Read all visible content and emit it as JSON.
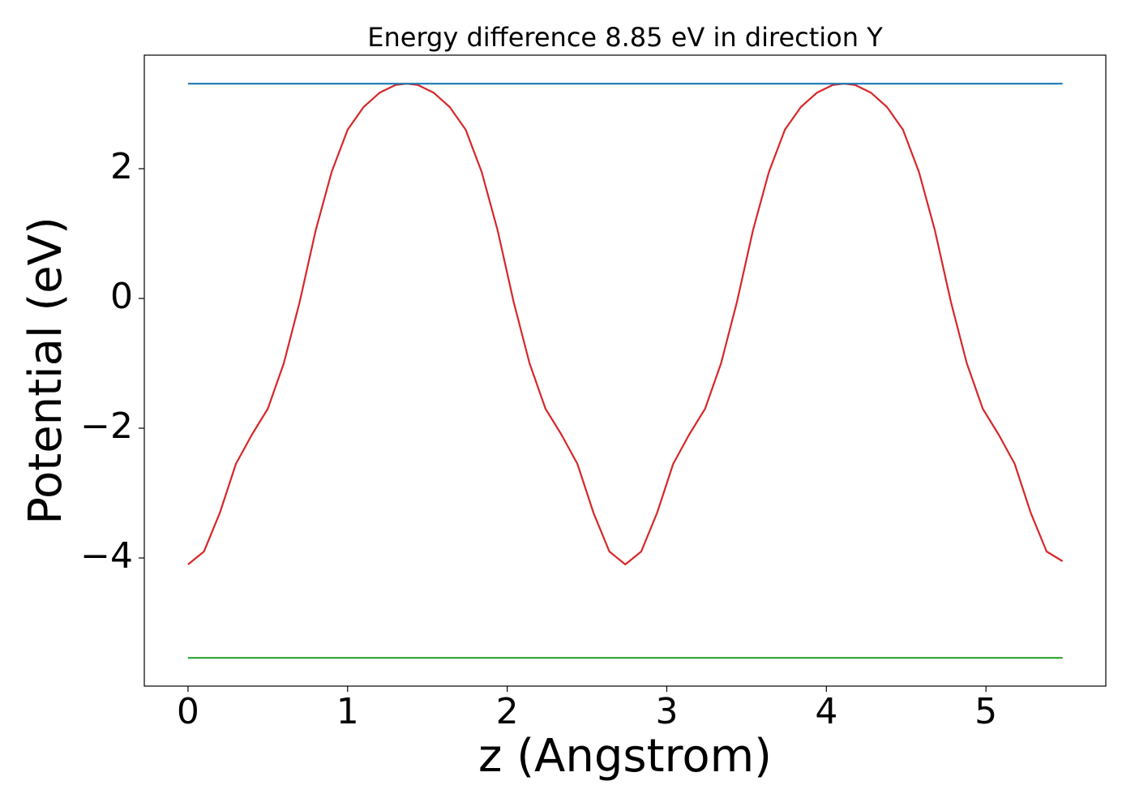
{
  "chart_data": {
    "type": "line",
    "title": "Energy difference 8.85 eV in direction Y",
    "xlabel": "z (Angstrom)",
    "ylabel": "Potential (eV)",
    "xlim": [
      -0.274,
      5.751
    ],
    "ylim": [
      -5.975,
      3.75
    ],
    "xticks": [
      0,
      1,
      2,
      3,
      4,
      5
    ],
    "yticks": [
      {
        "value": -4,
        "label": "−4"
      },
      {
        "value": -2,
        "label": "−2"
      },
      0,
      2
    ],
    "grid": false,
    "series": [
      {
        "color": "#d62728",
        "x": [
          0,
          0.1,
          0.2,
          0.3,
          0.4,
          0.5,
          0.6,
          0.7,
          0.8,
          0.9,
          1.0,
          1.1,
          1.2,
          1.3,
          1.37,
          1.44,
          1.54,
          1.64,
          1.74,
          1.84,
          1.94,
          2.04,
          2.14,
          2.24,
          2.34,
          2.44,
          2.54,
          2.64,
          2.74,
          2.84,
          2.94,
          3.04,
          3.14,
          3.24,
          3.34,
          3.44,
          3.54,
          3.64,
          3.74,
          3.84,
          3.94,
          4.04,
          4.11,
          4.18,
          4.28,
          4.38,
          4.48,
          4.58,
          4.68,
          4.78,
          4.88,
          4.98,
          5.08,
          5.18,
          5.28,
          5.38,
          5.48
        ],
        "values": [
          -4.1,
          -3.9,
          -3.3,
          -2.55,
          -2.1,
          -1.7,
          -1.0,
          -0.05,
          1.05,
          1.95,
          2.6,
          2.95,
          3.17,
          3.29,
          3.31,
          3.29,
          3.17,
          2.95,
          2.6,
          1.95,
          1.05,
          -0.05,
          -1.0,
          -1.7,
          -2.1,
          -2.55,
          -3.3,
          -3.9,
          -4.1,
          -3.9,
          -3.3,
          -2.55,
          -2.1,
          -1.7,
          -1.0,
          -0.05,
          1.05,
          1.95,
          2.6,
          2.95,
          3.17,
          3.29,
          3.31,
          3.29,
          3.17,
          2.95,
          2.6,
          1.95,
          1.05,
          -0.05,
          -1.0,
          -1.7,
          -2.1,
          -2.55,
          -3.3,
          -3.9,
          -4.05
        ]
      },
      {
        "color": "#1f77b4",
        "x": [
          0,
          5.48
        ],
        "values": [
          3.31,
          3.31
        ]
      },
      {
        "color": "#2ca02c",
        "x": [
          0,
          5.48
        ],
        "values": [
          -5.54,
          -5.54
        ]
      }
    ]
  }
}
